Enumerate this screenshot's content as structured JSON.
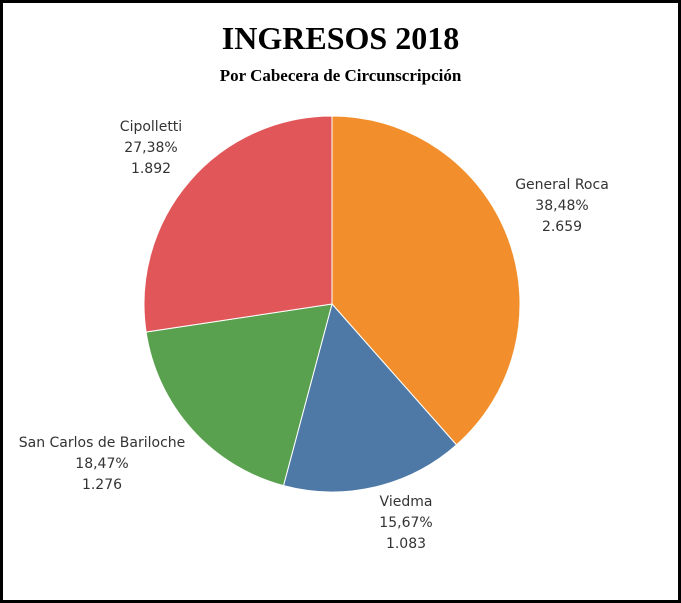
{
  "chart_data": {
    "type": "pie",
    "title": "INGRESOS 2018",
    "subtitle": "Por Cabecera de Circunscripción",
    "start": "top-clockwise",
    "slices": [
      {
        "label": "General Roca",
        "percent": "38,48%",
        "value_text": "2.659",
        "value": 2659,
        "color": "#F28E2B"
      },
      {
        "label": "Viedma",
        "percent": "15,67%",
        "value_text": "1.083",
        "value": 1083,
        "color": "#4E79A7"
      },
      {
        "label": "San Carlos de Bariloche",
        "percent": "18,47%",
        "value_text": "1.276",
        "value": 1276,
        "color": "#59A14F"
      },
      {
        "label": "Cipolletti",
        "percent": "27,38%",
        "value_text": "1.892",
        "value": 1892,
        "color": "#E15759"
      }
    ]
  }
}
